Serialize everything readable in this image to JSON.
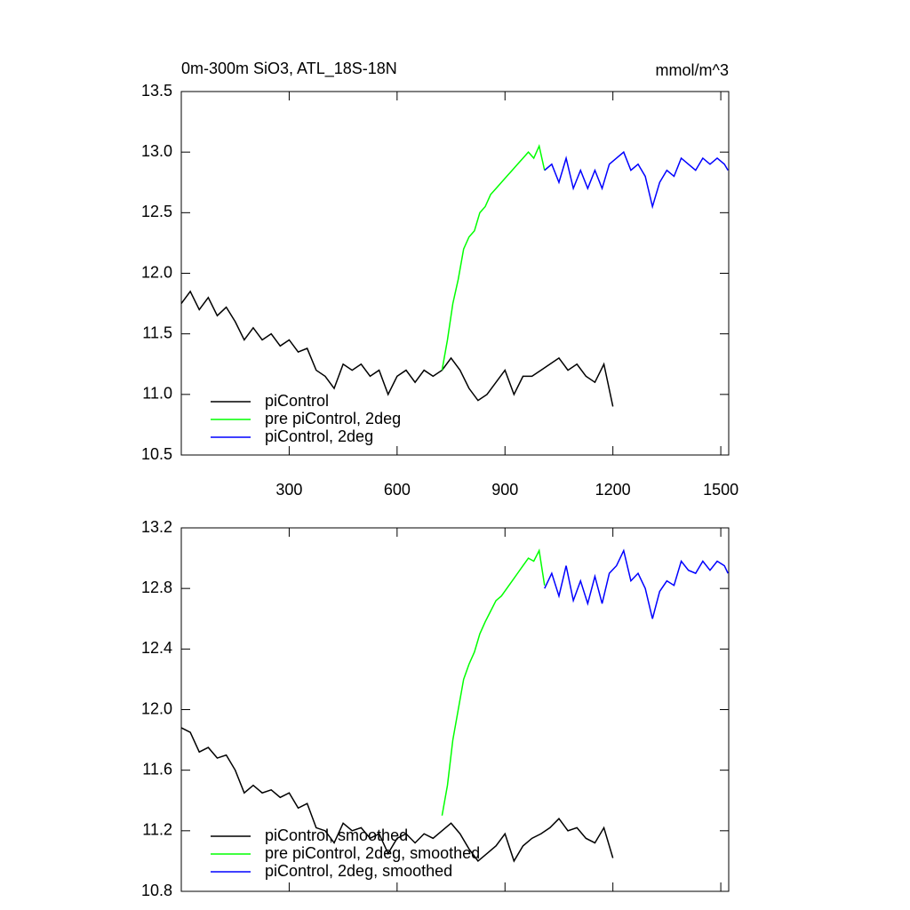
{
  "chart_data": [
    {
      "type": "line",
      "title": "0m-300m SiO3, ATL_18S-18N",
      "units": "mmol/m^3",
      "xlim": [
        0,
        1522
      ],
      "ylim": [
        10.5,
        13.5
      ],
      "xticks": [
        300,
        600,
        900,
        1200,
        1500
      ],
      "yticks": [
        10.5,
        11.0,
        11.5,
        12.0,
        12.5,
        13.0,
        13.5
      ],
      "yticks_labels": [
        "10.5",
        "11.0",
        "11.5",
        "12.0",
        "12.5",
        "13.0",
        "13.5"
      ],
      "series": [
        {
          "name": "piControl",
          "color": "#000000",
          "x": [
            0,
            25,
            50,
            75,
            100,
            125,
            150,
            175,
            200,
            225,
            250,
            275,
            300,
            325,
            350,
            375,
            400,
            425,
            450,
            475,
            500,
            525,
            550,
            575,
            600,
            625,
            650,
            675,
            700,
            725,
            750,
            775,
            800,
            825,
            850,
            875,
            900,
            925,
            950,
            975,
            1000,
            1025,
            1050,
            1075,
            1100,
            1125,
            1150,
            1175,
            1200
          ],
          "values": [
            11.75,
            11.85,
            11.7,
            11.8,
            11.65,
            11.72,
            11.6,
            11.45,
            11.55,
            11.45,
            11.5,
            11.4,
            11.45,
            11.35,
            11.38,
            11.2,
            11.15,
            11.05,
            11.25,
            11.2,
            11.25,
            11.15,
            11.2,
            11.0,
            11.15,
            11.2,
            11.1,
            11.2,
            11.15,
            11.2,
            11.3,
            11.2,
            11.05,
            10.95,
            11.0,
            11.1,
            11.2,
            11.0,
            11.15,
            11.15,
            11.2,
            11.25,
            11.3,
            11.2,
            11.25,
            11.15,
            11.1,
            11.25,
            10.9
          ]
        },
        {
          "name": "pre piControl, 2deg",
          "color": "#00ff00",
          "x": [
            725,
            740,
            755,
            770,
            785,
            800,
            815,
            830,
            845,
            860,
            875,
            890,
            905,
            920,
            935,
            950,
            965,
            980,
            995,
            1010
          ],
          "values": [
            11.2,
            11.45,
            11.75,
            11.95,
            12.2,
            12.3,
            12.35,
            12.5,
            12.55,
            12.65,
            12.7,
            12.75,
            12.8,
            12.85,
            12.9,
            12.95,
            13.0,
            12.95,
            13.05,
            12.85
          ]
        },
        {
          "name": "piControl, 2deg",
          "color": "#0000ff",
          "x": [
            1010,
            1030,
            1050,
            1070,
            1090,
            1110,
            1130,
            1150,
            1170,
            1190,
            1210,
            1230,
            1250,
            1270,
            1290,
            1310,
            1330,
            1350,
            1370,
            1390,
            1410,
            1430,
            1450,
            1470,
            1490,
            1510,
            1520
          ],
          "values": [
            12.85,
            12.9,
            12.75,
            12.95,
            12.7,
            12.85,
            12.7,
            12.85,
            12.7,
            12.9,
            12.95,
            13.0,
            12.85,
            12.9,
            12.8,
            12.55,
            12.75,
            12.85,
            12.8,
            12.95,
            12.9,
            12.85,
            12.95,
            12.9,
            12.95,
            12.9,
            12.85
          ]
        }
      ]
    },
    {
      "type": "line",
      "xlim": [
        0,
        1522
      ],
      "ylim": [
        10.8,
        13.2
      ],
      "xticks": [
        300,
        600,
        900,
        1200,
        1500
      ],
      "yticks": [
        10.8,
        11.2,
        11.6,
        12.0,
        12.4,
        12.8,
        13.2
      ],
      "yticks_labels": [
        "10.8",
        "11.2",
        "11.6",
        "12.0",
        "12.4",
        "12.8",
        "13.2"
      ],
      "series": [
        {
          "name": "piControl, smoothed",
          "color": "#000000",
          "x": [
            0,
            25,
            50,
            75,
            100,
            125,
            150,
            175,
            200,
            225,
            250,
            275,
            300,
            325,
            350,
            375,
            400,
            425,
            450,
            475,
            500,
            525,
            550,
            575,
            600,
            625,
            650,
            675,
            700,
            725,
            750,
            775,
            800,
            825,
            850,
            875,
            900,
            925,
            950,
            975,
            1000,
            1025,
            1050,
            1075,
            1100,
            1125,
            1150,
            1175,
            1200
          ],
          "values": [
            11.88,
            11.85,
            11.72,
            11.75,
            11.68,
            11.7,
            11.6,
            11.45,
            11.5,
            11.45,
            11.47,
            11.42,
            11.45,
            11.35,
            11.38,
            11.22,
            11.2,
            11.12,
            11.25,
            11.2,
            11.22,
            11.15,
            11.18,
            11.05,
            11.15,
            11.18,
            11.12,
            11.18,
            11.15,
            11.2,
            11.25,
            11.18,
            11.08,
            11.0,
            11.05,
            11.1,
            11.18,
            11.0,
            11.1,
            11.15,
            11.18,
            11.22,
            11.28,
            11.2,
            11.22,
            11.15,
            11.12,
            11.22,
            11.02
          ]
        },
        {
          "name": "pre piControl, 2deg, smoothed",
          "color": "#00ff00",
          "x": [
            725,
            740,
            755,
            770,
            785,
            800,
            815,
            830,
            845,
            860,
            875,
            890,
            905,
            920,
            935,
            950,
            965,
            980,
            995,
            1010
          ],
          "values": [
            11.3,
            11.5,
            11.8,
            12.0,
            12.2,
            12.3,
            12.38,
            12.5,
            12.58,
            12.65,
            12.72,
            12.75,
            12.8,
            12.85,
            12.9,
            12.95,
            13.0,
            12.98,
            13.05,
            12.82
          ]
        },
        {
          "name": "piControl, 2deg, smoothed",
          "color": "#0000ff",
          "x": [
            1010,
            1030,
            1050,
            1070,
            1090,
            1110,
            1130,
            1150,
            1170,
            1190,
            1210,
            1230,
            1250,
            1270,
            1290,
            1310,
            1330,
            1350,
            1370,
            1390,
            1410,
            1430,
            1450,
            1470,
            1490,
            1510,
            1520
          ],
          "values": [
            12.8,
            12.9,
            12.75,
            12.95,
            12.72,
            12.85,
            12.7,
            12.88,
            12.7,
            12.9,
            12.95,
            13.05,
            12.85,
            12.9,
            12.8,
            12.6,
            12.78,
            12.85,
            12.82,
            12.98,
            12.92,
            12.9,
            12.98,
            12.92,
            12.98,
            12.95,
            12.9
          ]
        }
      ]
    }
  ]
}
